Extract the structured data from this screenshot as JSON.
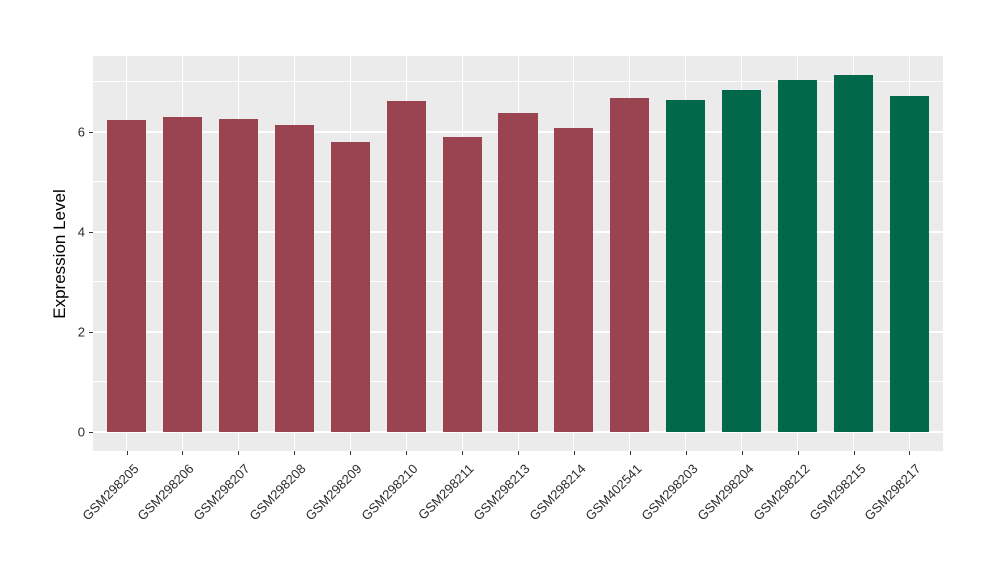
{
  "chart_data": {
    "type": "bar",
    "title": "",
    "xlabel": "",
    "ylabel": "Expression Level",
    "categories": [
      "GSM298205",
      "GSM298206",
      "GSM298207",
      "GSM298208",
      "GSM298209",
      "GSM298210",
      "GSM298211",
      "GSM298213",
      "GSM298214",
      "GSM402541",
      "GSM298203",
      "GSM298204",
      "GSM298212",
      "GSM298215",
      "GSM298217"
    ],
    "values": [
      6.23,
      6.29,
      6.25,
      6.13,
      5.8,
      6.61,
      5.9,
      6.37,
      6.08,
      6.68,
      6.64,
      6.84,
      7.03,
      7.14,
      6.71
    ],
    "groups": [
      "red",
      "red",
      "red",
      "red",
      "red",
      "red",
      "red",
      "red",
      "red",
      "red",
      "green",
      "green",
      "green",
      "green",
      "green"
    ],
    "group_colors": {
      "red": "#9A4451",
      "green": "#016849"
    },
    "yticks": [
      0,
      2,
      4,
      6
    ],
    "minor_gridlines": [
      1,
      3,
      5,
      7
    ],
    "ylim": [
      -0.38,
      7.51
    ],
    "bar_width_ratio": 0.7,
    "grid": true,
    "legend_position": "none",
    "panel_bg": "#EBEBEB",
    "grid_color": "#FFFFFF",
    "tick_color": "#333333",
    "text_color": "#2b2b2b"
  }
}
